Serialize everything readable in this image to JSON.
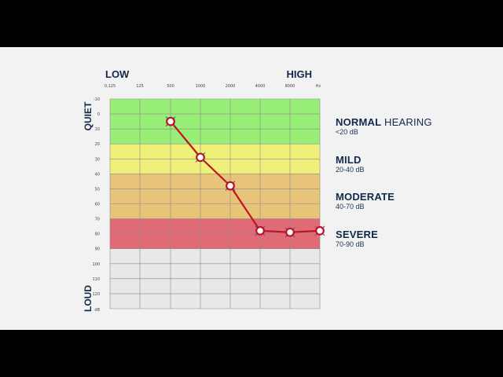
{
  "chart_data": {
    "type": "line",
    "low_label": "LOW",
    "high_label": "HIGH",
    "quiet_label": "QUIET",
    "loud_label": "LOUD",
    "x_unit": "Hz",
    "y_unit": "dB",
    "x_ticks": [
      "0,125",
      "125",
      "500",
      "1000",
      "2000",
      "4000",
      "8000"
    ],
    "y_ticks": [
      "-10",
      "0",
      "10",
      "20",
      "30",
      "40",
      "50",
      "60",
      "70",
      "80",
      "90",
      "100",
      "110",
      "120"
    ],
    "ylim": [
      -10,
      130
    ],
    "bands": [
      {
        "from": -10,
        "to": 20,
        "color": "#99ee77"
      },
      {
        "from": 20,
        "to": 40,
        "color": "#eef07a"
      },
      {
        "from": 40,
        "to": 70,
        "color": "#e8c47a"
      },
      {
        "from": 70,
        "to": 90,
        "color": "#e06b76"
      },
      {
        "from": 90,
        "to": 130,
        "color": "#e8e8e8"
      }
    ],
    "series": [
      {
        "x": [
          "125",
          "500",
          "1000",
          "2000",
          "4000",
          "8000"
        ],
        "values": [
          5,
          29,
          48,
          78,
          79,
          78
        ],
        "color": "#c1121f"
      }
    ],
    "grid": true
  },
  "legend": [
    {
      "title_bold": "NORMAL",
      "title_rest": " HEARING",
      "sub": "<20 dB"
    },
    {
      "title_bold": "MILD",
      "title_rest": "",
      "sub": "20-40 dB"
    },
    {
      "title_bold": "MODERATE",
      "title_rest": "",
      "sub": "40-70 dB"
    },
    {
      "title_bold": "SEVERE",
      "title_rest": "",
      "sub": "70-90 dB"
    }
  ]
}
